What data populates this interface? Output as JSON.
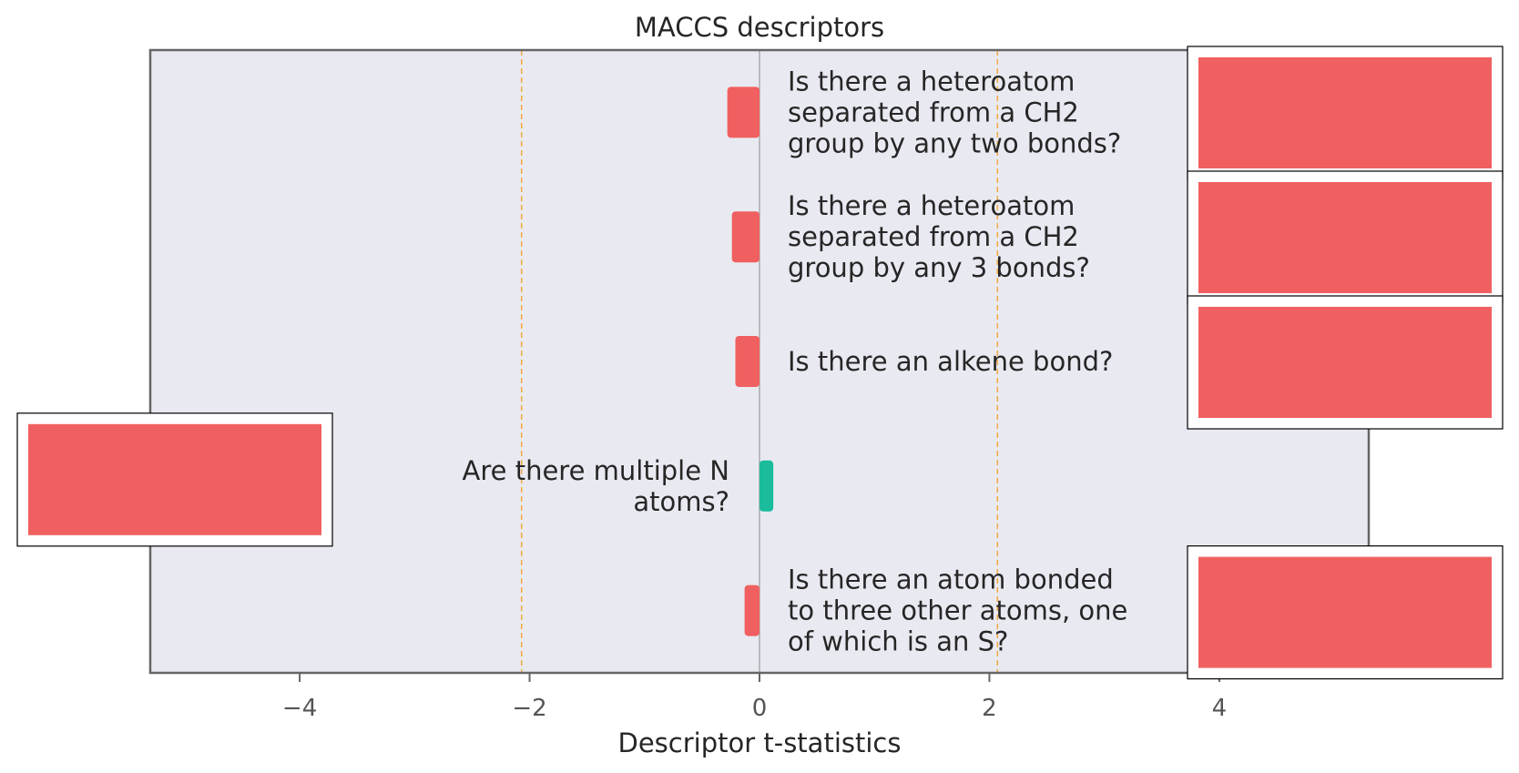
{
  "chart_data": {
    "type": "bar",
    "orientation": "horizontal",
    "title": "MACCS descriptors",
    "xlabel": "Descriptor t-statistics",
    "xlim": [
      -5.3,
      5.3
    ],
    "xticks": [
      -4,
      -2,
      0,
      2,
      4
    ],
    "xtick_labels": [
      "−4",
      "−2",
      "0",
      "2",
      "4"
    ],
    "threshold_lines": [
      -2.07,
      2.07
    ],
    "categories": [
      "Is there a heteroatom separated from a CH2 group by any two bonds?",
      "Is there a heteroatom separated from a CH2 group by any 3 bonds?",
      "Is there an alkene bond?",
      "Are there multiple N atoms?",
      "Is there an atom bonded to three other atoms, one of which is an S?"
    ],
    "label_lines": [
      [
        "Is there a heteroatom",
        "separated from a CH2",
        "group by any two bonds?"
      ],
      [
        "Is there a heteroatom",
        "separated from a CH2",
        "group by any 3 bonds?"
      ],
      [
        "Is there an alkene bond?"
      ],
      [
        "Are there multiple N",
        "atoms?"
      ],
      [
        "Is there an atom bonded",
        "to three other atoms, one",
        "of which is an S?"
      ]
    ],
    "values": [
      -0.28,
      -0.24,
      -0.21,
      0.12,
      -0.13
    ],
    "bar_colors": [
      "#f06060",
      "#f06060",
      "#f06060",
      "#1abc9c",
      "#f06060"
    ],
    "grid": false,
    "background": "#e9eaf1",
    "threshold_color": "#f5a742",
    "frame_color": "#666666"
  }
}
